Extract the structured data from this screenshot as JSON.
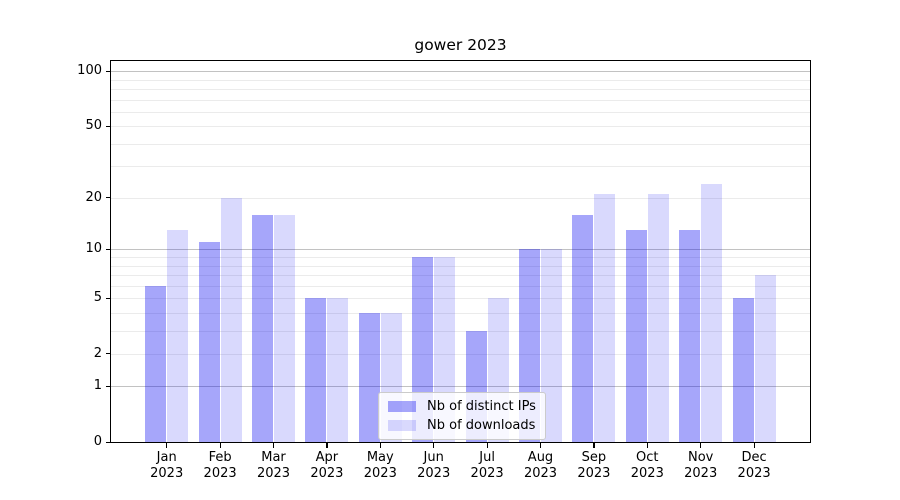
{
  "chart_data": {
    "type": "bar",
    "title": "gower 2023",
    "categories": [
      "Jan 2023",
      "Feb 2023",
      "Mar 2023",
      "Apr 2023",
      "May 2023",
      "Jun 2023",
      "Jul 2023",
      "Aug 2023",
      "Sep 2023",
      "Oct 2023",
      "Nov 2023",
      "Dec 2023"
    ],
    "category_months": [
      "Jan",
      "Feb",
      "Mar",
      "Apr",
      "May",
      "Jun",
      "Jul",
      "Aug",
      "Sep",
      "Oct",
      "Nov",
      "Dec"
    ],
    "category_year": "2023",
    "series": [
      {
        "name": "Nb of distinct IPs",
        "color": "rgba(0,0,240,0.35)",
        "color_hex_on_white": "#a6a6fa",
        "values": [
          6,
          11,
          16,
          5,
          4,
          9,
          3,
          10,
          16,
          13,
          13,
          5
        ]
      },
      {
        "name": "Nb of downloads",
        "color": "rgba(0,0,240,0.15)",
        "color_hex_on_white": "#d9d9fd",
        "values": [
          13,
          20,
          16,
          5,
          4,
          9,
          5,
          10,
          21,
          21,
          24,
          7
        ]
      }
    ],
    "xlabel": "",
    "ylabel": "",
    "y_axis": {
      "scale": "log1p",
      "tick_labels": [
        "0",
        "1",
        "2",
        "5",
        "10",
        "20",
        "50",
        "100"
      ],
      "tick_values": [
        0,
        1,
        2,
        5,
        10,
        20,
        50,
        100
      ],
      "axis_max": 114,
      "major_gridlines": [
        1,
        10,
        100
      ],
      "minor_gridlines": [
        2,
        3,
        4,
        5,
        6,
        7,
        8,
        9,
        20,
        30,
        40,
        50,
        60,
        70,
        80,
        90
      ],
      "major_grid_color": "#c2c2c2",
      "minor_grid_color": "#ebebeb"
    },
    "legend": {
      "position": "lower center inside",
      "entries": [
        "Nb of distinct IPs",
        "Nb of downloads"
      ]
    },
    "grid": true
  }
}
